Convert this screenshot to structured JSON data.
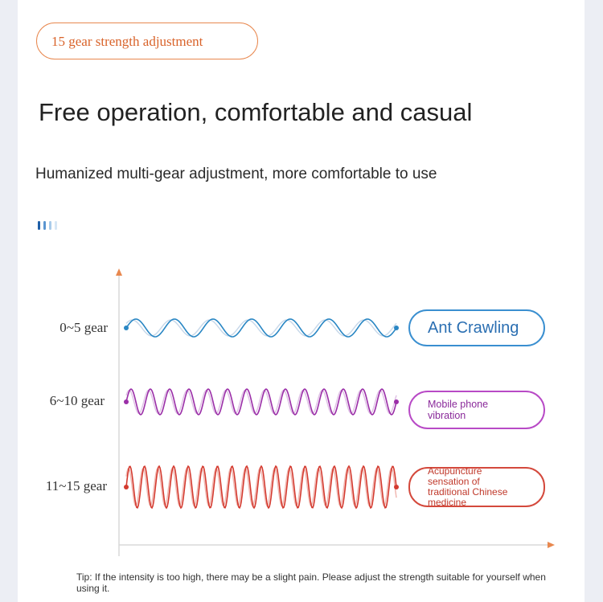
{
  "badge": "15 gear strength adjustment",
  "title": "Free operation, comfortable and casual",
  "subtitle": "Humanized multi-gear adjustment, more comfortable to use",
  "rows": [
    {
      "gear": "0~5 gear",
      "description": "Ant Crawling"
    },
    {
      "gear": "6~10 gear",
      "description": "Mobile phone vibration"
    },
    {
      "gear": "11~15 gear",
      "description": "Acupuncture sensation of traditional Chinese medicine"
    }
  ],
  "tip": "Tip: If the intensity is too high, there may be a slight pain. Please adjust the strength suitable for yourself when using it."
}
